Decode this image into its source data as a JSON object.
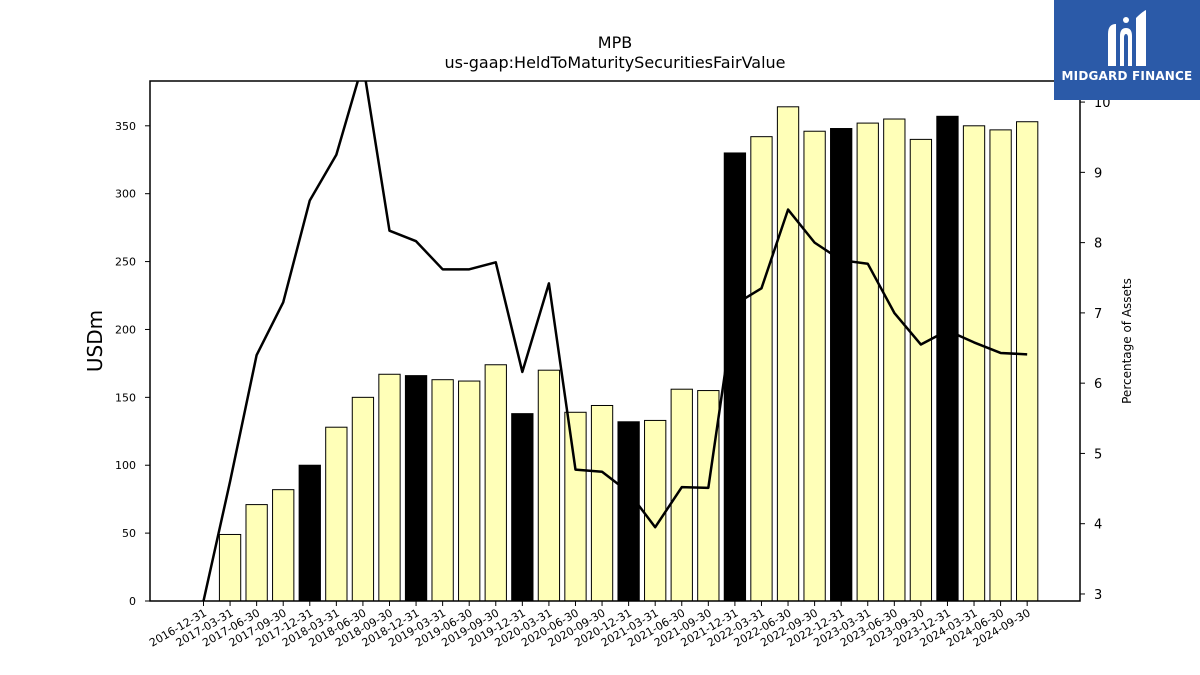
{
  "chart_data": {
    "type": "bar+line",
    "title": "MPB",
    "subtitle": "us-gaap:HeldToMaturitySecuritiesFairValue",
    "ylabel": "USDm",
    "y2label": "Percentage of Assets",
    "ylim": [
      0,
      383
    ],
    "y2lim": [
      2.9,
      10.3
    ],
    "yticks": [
      0,
      50,
      100,
      150,
      200,
      250,
      300,
      350
    ],
    "y2ticks": [
      3,
      4,
      5,
      6,
      7,
      8,
      9,
      10
    ],
    "categories": [
      "2016-12-31",
      "2017-03-31",
      "2017-06-30",
      "2017-09-30",
      "2017-12-31",
      "2018-03-31",
      "2018-06-30",
      "2018-09-30",
      "2018-12-31",
      "2019-03-31",
      "2019-06-30",
      "2019-09-30",
      "2019-12-31",
      "2020-03-31",
      "2020-06-30",
      "2020-09-30",
      "2020-12-31",
      "2021-03-31",
      "2021-06-30",
      "2021-09-30",
      "2021-12-31",
      "2022-03-31",
      "2022-06-30",
      "2022-09-30",
      "2022-12-31",
      "2023-03-31",
      "2023-06-30",
      "2023-09-30",
      "2023-12-31",
      "2024-03-31",
      "2024-06-30",
      "2024-09-30"
    ],
    "series": [
      {
        "kind": "bar",
        "values": [
          0,
          49,
          71,
          82,
          100,
          128,
          150,
          167,
          166,
          163,
          162,
          174,
          138,
          170,
          139,
          144,
          132,
          133,
          156,
          155,
          330,
          342,
          364,
          346,
          348,
          352,
          355,
          340,
          357,
          350,
          347,
          353
        ],
        "highlight": [
          false,
          false,
          false,
          false,
          true,
          false,
          false,
          false,
          true,
          false,
          false,
          false,
          true,
          false,
          false,
          false,
          true,
          false,
          false,
          false,
          true,
          false,
          false,
          false,
          true,
          false,
          false,
          false,
          true,
          false,
          false,
          false
        ]
      },
      {
        "kind": "line",
        "axis": "right",
        "values": [
          2.9,
          4.6,
          6.4,
          7.15,
          8.6,
          9.25,
          10.55,
          8.17,
          8.02,
          7.62,
          7.62,
          7.72,
          6.16,
          7.42,
          4.77,
          4.74,
          4.45,
          3.95,
          4.52,
          4.51,
          7.12,
          7.35,
          8.47,
          8.0,
          7.75,
          7.7,
          7.0,
          6.55,
          6.75,
          6.58,
          6.43,
          6.41
        ]
      }
    ],
    "colors": {
      "bar": "#ffffb8",
      "bar_highlight": "#000000",
      "line": "#000000"
    }
  },
  "logo": {
    "text": "MIDGARD FINANCE"
  }
}
